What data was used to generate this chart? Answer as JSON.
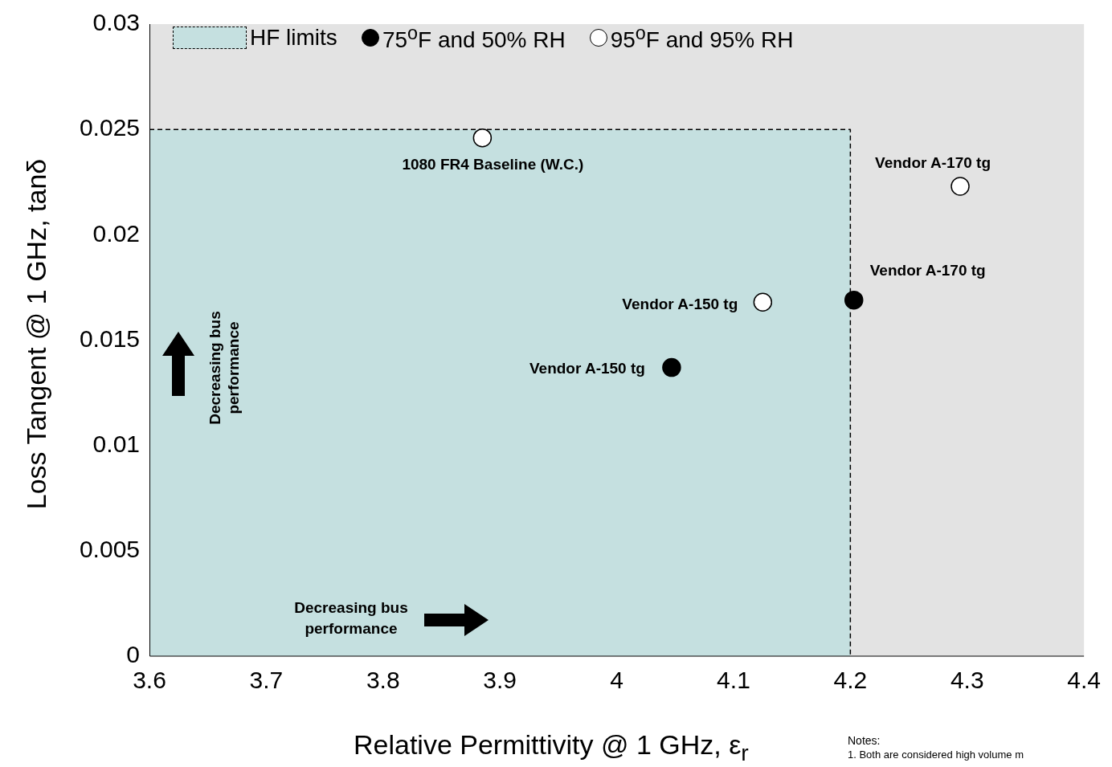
{
  "chart_data": {
    "type": "scatter",
    "xlabel": "Relative Permittivity @ 1 GHz, ε$_{r}$",
    "ylabel": "Loss Tangent @ 1 GHz, tanδ",
    "xlim": [
      3.6,
      4.4
    ],
    "xticks": [
      3.6,
      3.7,
      3.8,
      3.9,
      4,
      4.1,
      4.2,
      4.3,
      4.4
    ],
    "ylim": [
      0,
      0.03
    ],
    "yticks": [
      0,
      0.005,
      0.01,
      0.015,
      0.02,
      0.025,
      0.03
    ],
    "marker": "circle",
    "legend": "top left",
    "series": [
      {
        "name": "HF limits",
        "type": "area",
        "marker": "none",
        "color": "#c5e0e0",
        "line_style": "dashed",
        "x": [
          3.6,
          4.2,
          4.2
        ],
        "values": [
          0.025,
          0.025,
          0
        ]
      },
      {
        "name": "75$^{o}$F and 50% RH",
        "type": "scatter",
        "color": "#000000",
        "x": [
          4.203,
          4.047
        ],
        "values": [
          0.0169,
          0.0137
        ]
      },
      {
        "name": "95$^{o}$F and 95% RH",
        "type": "scatter",
        "color": "#ffffff",
        "x": [
          3.885,
          4.294,
          4.125
        ],
        "values": [
          0.0246,
          0.0223,
          0.0168
        ]
      }
    ],
    "annotations": [
      {
        "text": "1080 FR4 Baseline (W.C.)",
        "x": 3.885,
        "y": 0.0246
      },
      {
        "text": "Vendor A-170 tg",
        "x": 4.294,
        "y": 0.0223
      },
      {
        "text": "Vendor A-150 tg",
        "x": 4.125,
        "y": 0.0168
      },
      {
        "text": "Vendor A-170 tg",
        "x": 4.203,
        "y": 0.0169
      },
      {
        "text": "Vendor A-150 tg",
        "x": 4.047,
        "y": 0.0137
      },
      "Decreasing bus performance",
      "Decreasing bus performance",
      "Notes:",
      "1. Both are considered high volume m"
    ]
  }
}
